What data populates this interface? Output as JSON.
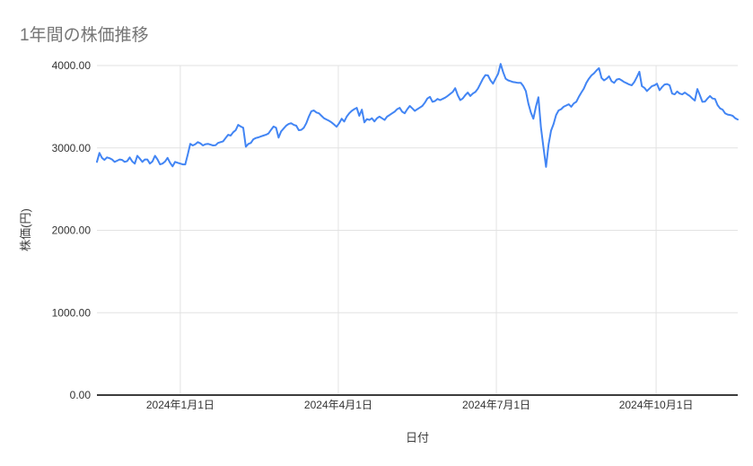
{
  "page": {
    "background": "#ffffff"
  },
  "chart": {
    "title": "1年間の株価推移",
    "title_color": "#757575",
    "xlabel": "日付",
    "ylabel": "株価(円)"
  },
  "chart_data": {
    "type": "line",
    "title": "1年間の株価推移",
    "xlabel": "日付",
    "ylabel": "株価(円)",
    "legend_position": "none",
    "grid": true,
    "line_color": "#4285f4",
    "gridline_color": "#e2e2e2",
    "axisline_color": "#212121",
    "ylim": [
      0,
      4000
    ],
    "y_ticks": [
      {
        "value": 0,
        "label": "0.00"
      },
      {
        "value": 1000,
        "label": "1000.00"
      },
      {
        "value": 2000,
        "label": "2000.00"
      },
      {
        "value": 3000,
        "label": "3000.00"
      },
      {
        "value": 4000,
        "label": "4000.00"
      }
    ],
    "x_range": {
      "start_date": "2023-11-14",
      "end_date": "2024-11-17"
    },
    "x_ticks": [
      {
        "date": "2024-01-01",
        "label": "2024年1月1日"
      },
      {
        "date": "2024-04-01",
        "label": "2024年4月1日"
      },
      {
        "date": "2024-07-01",
        "label": "2024年7月1日"
      },
      {
        "date": "2024-10-01",
        "label": "2024年10月1日"
      }
    ],
    "series": [
      {
        "name": "株価",
        "color": "#4285f4",
        "values": [
          2830,
          2940,
          2880,
          2855,
          2885,
          2875,
          2860,
          2830,
          2845,
          2860,
          2855,
          2830,
          2840,
          2885,
          2835,
          2810,
          2905,
          2870,
          2830,
          2860,
          2860,
          2810,
          2835,
          2905,
          2860,
          2800,
          2810,
          2835,
          2880,
          2820,
          2776,
          2830,
          2820,
          2810,
          2800,
          2800,
          2920,
          3050,
          3030,
          3045,
          3070,
          3055,
          3030,
          3045,
          3050,
          3040,
          3030,
          3032,
          3060,
          3070,
          3080,
          3120,
          3160,
          3150,
          3190,
          3215,
          3280,
          3260,
          3245,
          3015,
          3048,
          3060,
          3105,
          3120,
          3128,
          3140,
          3150,
          3160,
          3175,
          3220,
          3260,
          3245,
          3125,
          3200,
          3235,
          3270,
          3290,
          3300,
          3280,
          3270,
          3215,
          3220,
          3245,
          3300,
          3380,
          3445,
          3455,
          3430,
          3420,
          3390,
          3360,
          3345,
          3330,
          3310,
          3285,
          3257,
          3300,
          3355,
          3320,
          3380,
          3420,
          3450,
          3470,
          3487,
          3390,
          3465,
          3310,
          3350,
          3340,
          3360,
          3322,
          3360,
          3380,
          3360,
          3340,
          3380,
          3400,
          3420,
          3440,
          3470,
          3487,
          3440,
          3420,
          3470,
          3509,
          3480,
          3450,
          3470,
          3490,
          3510,
          3550,
          3600,
          3620,
          3560,
          3570,
          3595,
          3580,
          3595,
          3610,
          3630,
          3655,
          3680,
          3725,
          3640,
          3580,
          3600,
          3640,
          3672,
          3630,
          3660,
          3680,
          3720,
          3780,
          3840,
          3885,
          3880,
          3820,
          3780,
          3840,
          3900,
          4020,
          3920,
          3840,
          3820,
          3810,
          3800,
          3795,
          3790,
          3790,
          3750,
          3690,
          3540,
          3430,
          3355,
          3500,
          3615,
          3250,
          3000,
          2770,
          3040,
          3210,
          3290,
          3400,
          3455,
          3470,
          3500,
          3515,
          3530,
          3500,
          3540,
          3560,
          3620,
          3672,
          3720,
          3790,
          3840,
          3880,
          3905,
          3940,
          3968,
          3850,
          3820,
          3840,
          3870,
          3810,
          3790,
          3830,
          3838,
          3820,
          3800,
          3785,
          3770,
          3760,
          3800,
          3860,
          3925,
          3750,
          3730,
          3690,
          3720,
          3750,
          3760,
          3780,
          3700,
          3740,
          3770,
          3775,
          3760,
          3660,
          3650,
          3685,
          3660,
          3650,
          3672,
          3650,
          3630,
          3600,
          3575,
          3716,
          3640,
          3560,
          3563,
          3600,
          3630,
          3600,
          3595,
          3520,
          3480,
          3465,
          3420,
          3405,
          3400,
          3390,
          3360,
          3345
        ]
      }
    ]
  }
}
